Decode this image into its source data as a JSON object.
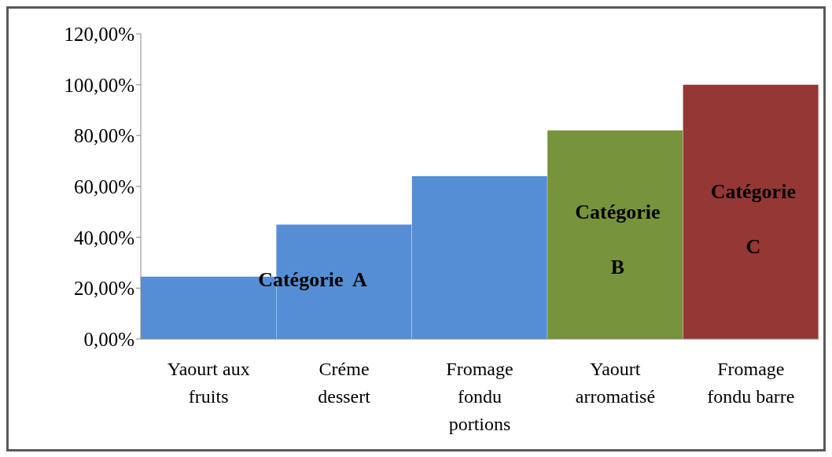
{
  "chart_data": {
    "type": "bar",
    "categories": [
      "Yaourt aux fruits",
      "Créme dessert",
      "Fromage fondu portions",
      "Yaourt arromatisé",
      "Fromage fondu barre"
    ],
    "values": [
      0.245,
      0.45,
      0.64,
      0.82,
      1.0
    ],
    "colors": [
      "#558ed5",
      "#558ed5",
      "#558ed5",
      "#77933c",
      "#953735"
    ],
    "ylim": [
      0,
      1.2
    ],
    "yticks": [
      {
        "value": 0,
        "label": "0,00%"
      },
      {
        "value": 0.2,
        "label": "20,00%"
      },
      {
        "value": 0.4,
        "label": "40,00%"
      },
      {
        "value": 0.6,
        "label": "60,00%"
      },
      {
        "value": 0.8,
        "label": "80,00%"
      },
      {
        "value": 1.0,
        "label": "100,00%"
      },
      {
        "value": 1.2,
        "label": "120,00%"
      }
    ],
    "annotations": [
      "Catégorie  A",
      "Catégorie B",
      "Catégorie C"
    ],
    "grid": false,
    "legend": false
  }
}
